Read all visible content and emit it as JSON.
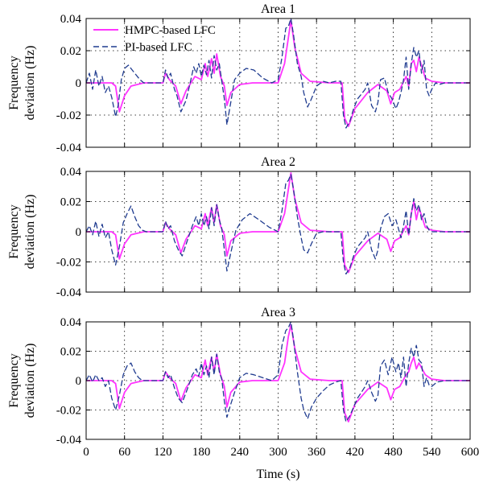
{
  "colors": {
    "hmpc": "#ff33ff",
    "pi": "#1f3b8f"
  },
  "shared_xlabel": "Time (s)",
  "chart_data": [
    {
      "type": "line",
      "title": "Area 1",
      "ylabel": [
        "Frequency",
        "deviation (Hz)"
      ],
      "xlim": [
        0,
        600
      ],
      "ylim": [
        -0.04,
        0.04
      ],
      "xticks": [
        0,
        60,
        120,
        180,
        240,
        300,
        360,
        420,
        480,
        540,
        600
      ],
      "yticks": [
        -0.04,
        -0.02,
        0,
        0.02,
        0.04
      ],
      "ytick_labels": [
        "-0.04",
        "-0.02",
        "0",
        "0.02",
        "0.04"
      ],
      "grid": true,
      "legend": "top-left",
      "series": [
        {
          "name": "HMPC-based LFC",
          "style": "solid",
          "x": [
            0,
            20,
            40,
            46,
            52,
            60,
            70,
            80,
            90,
            100,
            120,
            124,
            130,
            140,
            148,
            156,
            170,
            180,
            186,
            190,
            196,
            200,
            204,
            210,
            216,
            220,
            226,
            240,
            260,
            300,
            310,
            316,
            320,
            326,
            336,
            350,
            380,
            400,
            404,
            410,
            420,
            440,
            456,
            470,
            476,
            482,
            490,
            500,
            504,
            508,
            512,
            516,
            520,
            530,
            540,
            560,
            600
          ],
          "y": [
            0,
            0,
            0,
            -0.002,
            -0.018,
            -0.008,
            -0.002,
            -0.001,
            0,
            0,
            0,
            0.006,
            0.002,
            -0.002,
            -0.013,
            -0.005,
            0.004,
            0.002,
            0.012,
            0.004,
            0.015,
            0.006,
            0.018,
            0.004,
            -0.002,
            -0.014,
            -0.006,
            -0.001,
            0,
            0,
            0.012,
            0.028,
            0.039,
            0.022,
            0.006,
            0.001,
            0,
            0,
            -0.022,
            -0.027,
            -0.016,
            -0.006,
            -0.001,
            -0.005,
            -0.013,
            -0.006,
            -0.004,
            0.004,
            -0.002,
            0.012,
            0.014,
            0.007,
            0.016,
            0.003,
            0.001,
            0,
            0
          ]
        },
        {
          "name": "PI-based LFC",
          "style": "dashed",
          "x": [
            0,
            5,
            10,
            15,
            20,
            25,
            30,
            35,
            40,
            46,
            50,
            55,
            60,
            66,
            72,
            78,
            84,
            90,
            96,
            102,
            108,
            114,
            120,
            124,
            128,
            132,
            138,
            142,
            148,
            156,
            162,
            168,
            172,
            176,
            180,
            184,
            188,
            192,
            196,
            200,
            204,
            208,
            212,
            216,
            220,
            226,
            232,
            240,
            250,
            262,
            276,
            290,
            300,
            306,
            312,
            316,
            320,
            324,
            330,
            336,
            340,
            346,
            352,
            360,
            370,
            380,
            390,
            398,
            402,
            406,
            412,
            418,
            424,
            430,
            436,
            440,
            446,
            452,
            456,
            460,
            466,
            472,
            478,
            484,
            488,
            492,
            496,
            500,
            504,
            508,
            512,
            516,
            520,
            524,
            528,
            532,
            536,
            540,
            546,
            552,
            560,
            600
          ],
          "y": [
            0,
            0.006,
            -0.004,
            0.008,
            -0.002,
            0.004,
            -0.006,
            -0.002,
            -0.009,
            -0.021,
            -0.014,
            0.002,
            0.009,
            0.011,
            0.008,
            0.005,
            0.002,
            0,
            0,
            0,
            0,
            0,
            0,
            0.008,
            0.003,
            0.006,
            -0.004,
            -0.008,
            -0.018,
            -0.011,
            -0.001,
            0.01,
            0.006,
            0.012,
            0.004,
            0.011,
            0.005,
            0.014,
            0.003,
            0.017,
            0.008,
            0.012,
            0.001,
            -0.01,
            -0.026,
            -0.012,
            0.002,
            0.006,
            0.009,
            0.008,
            0.003,
            0,
            0.002,
            0.016,
            0.034,
            0.035,
            0.04,
            0.03,
            0.012,
            0.004,
            -0.006,
            -0.015,
            -0.01,
            -0.002,
            0.001,
            0,
            0.001,
            0.001,
            -0.02,
            -0.028,
            -0.024,
            -0.016,
            -0.01,
            -0.007,
            -0.004,
            0,
            -0.014,
            -0.018,
            -0.012,
            0.002,
            0.003,
            -0.006,
            -0.01,
            -0.016,
            -0.012,
            -0.006,
            0.002,
            0.016,
            -0.004,
            0.012,
            0.022,
            0.016,
            0.02,
            0.006,
            0.014,
            -0.004,
            -0.008,
            -0.004,
            0,
            -0.001,
            0,
            0
          ]
        }
      ]
    },
    {
      "type": "line",
      "title": "Area 2",
      "ylabel": [
        "Frequency",
        "deviation (Hz)"
      ],
      "xlim": [
        0,
        600
      ],
      "ylim": [
        -0.04,
        0.04
      ],
      "xticks": [
        0,
        60,
        120,
        180,
        240,
        300,
        360,
        420,
        480,
        540,
        600
      ],
      "yticks": [
        -0.04,
        -0.02,
        0,
        0.02,
        0.04
      ],
      "ytick_labels": [
        "-0.04",
        "-0.02",
        "0",
        "0.02",
        "0.04"
      ],
      "grid": true,
      "series": [
        {
          "name": "HMPC-based LFC",
          "style": "solid",
          "x": [
            0,
            20,
            40,
            46,
            52,
            60,
            70,
            80,
            90,
            100,
            120,
            124,
            130,
            140,
            148,
            156,
            170,
            180,
            186,
            190,
            196,
            200,
            204,
            210,
            216,
            220,
            226,
            240,
            260,
            300,
            310,
            316,
            320,
            326,
            336,
            350,
            380,
            400,
            404,
            410,
            420,
            440,
            456,
            470,
            476,
            482,
            490,
            500,
            504,
            508,
            512,
            516,
            520,
            530,
            540,
            560,
            600
          ],
          "y": [
            0,
            0,
            0,
            -0.002,
            -0.018,
            -0.008,
            -0.002,
            -0.001,
            0,
            0,
            0,
            0.006,
            0.002,
            -0.002,
            -0.014,
            -0.005,
            0.004,
            0.002,
            0.012,
            0.004,
            0.016,
            0.006,
            0.018,
            0.004,
            -0.002,
            -0.016,
            -0.006,
            -0.001,
            0,
            0,
            0.012,
            0.028,
            0.039,
            0.022,
            0.006,
            0.001,
            0,
            0,
            -0.022,
            -0.027,
            -0.016,
            -0.006,
            -0.001,
            -0.005,
            -0.013,
            -0.006,
            -0.004,
            0.004,
            -0.002,
            0.012,
            0.02,
            0.008,
            0.016,
            0.003,
            0.001,
            0,
            0
          ]
        },
        {
          "name": "PI-based LFC",
          "style": "dashed",
          "x": [
            0,
            5,
            10,
            15,
            20,
            25,
            30,
            35,
            40,
            46,
            52,
            58,
            64,
            70,
            76,
            82,
            88,
            94,
            100,
            110,
            120,
            124,
            128,
            132,
            138,
            144,
            150,
            158,
            166,
            172,
            176,
            180,
            184,
            188,
            192,
            196,
            200,
            204,
            208,
            212,
            216,
            220,
            226,
            234,
            244,
            256,
            270,
            286,
            300,
            306,
            312,
            316,
            320,
            324,
            330,
            336,
            340,
            346,
            352,
            360,
            370,
            380,
            398,
            402,
            406,
            412,
            418,
            424,
            430,
            436,
            440,
            446,
            452,
            456,
            460,
            466,
            472,
            478,
            484,
            488,
            492,
            496,
            500,
            504,
            508,
            512,
            516,
            520,
            524,
            528,
            532,
            536,
            540,
            548,
            560,
            600
          ],
          "y": [
            0,
            0.004,
            -0.002,
            0.007,
            -0.003,
            0.005,
            -0.004,
            0,
            -0.012,
            -0.022,
            -0.01,
            0.006,
            0.012,
            0.017,
            0.01,
            0.004,
            0.001,
            0,
            0,
            0,
            0,
            0.007,
            0.002,
            0.004,
            -0.006,
            -0.012,
            -0.016,
            -0.006,
            0.004,
            0.01,
            0.004,
            0.012,
            0.004,
            0.01,
            0.002,
            0.016,
            0.004,
            0.018,
            0.008,
            0.002,
            -0.012,
            -0.026,
            -0.014,
            0.001,
            0.008,
            0.012,
            0.008,
            0.003,
            0,
            0.014,
            0.032,
            0.034,
            0.038,
            0.028,
            0.01,
            -0.004,
            -0.012,
            -0.014,
            -0.008,
            -0.001,
            0,
            0,
            0,
            -0.02,
            -0.028,
            -0.024,
            -0.016,
            -0.01,
            -0.007,
            -0.004,
            0,
            -0.012,
            -0.018,
            -0.012,
            0.002,
            0.01,
            0.012,
            0.004,
            0.008,
            0.002,
            -0.004,
            0.004,
            0.014,
            -0.002,
            0.012,
            0.022,
            0.014,
            0.018,
            0.008,
            0.012,
            0.004,
            0.001,
            0,
            0,
            0,
            0
          ]
        }
      ]
    },
    {
      "type": "line",
      "title": "Area 3",
      "ylabel": [
        "Frequency",
        "deviation (Hz)"
      ],
      "xlabel": "Time (s)",
      "xlim": [
        0,
        600
      ],
      "ylim": [
        -0.04,
        0.04
      ],
      "xticks": [
        0,
        60,
        120,
        180,
        240,
        300,
        360,
        420,
        480,
        540,
        600
      ],
      "yticks": [
        -0.04,
        -0.02,
        0,
        0.02,
        0.04
      ],
      "ytick_labels": [
        "-0.04",
        "-0.02",
        "0",
        "0.02",
        "0.04"
      ],
      "grid": true,
      "series": [
        {
          "name": "HMPC-based LFC",
          "style": "solid",
          "x": [
            0,
            20,
            40,
            46,
            52,
            60,
            70,
            80,
            90,
            100,
            120,
            124,
            130,
            140,
            148,
            156,
            170,
            180,
            186,
            190,
            196,
            200,
            204,
            210,
            216,
            220,
            226,
            240,
            260,
            300,
            310,
            316,
            320,
            326,
            336,
            350,
            380,
            400,
            404,
            410,
            420,
            440,
            456,
            470,
            476,
            482,
            490,
            500,
            504,
            508,
            512,
            516,
            520,
            530,
            540,
            560,
            600
          ],
          "y": [
            0,
            0,
            0,
            -0.002,
            -0.019,
            -0.008,
            -0.002,
            -0.001,
            0,
            0,
            0,
            0.006,
            0.002,
            -0.002,
            -0.014,
            -0.005,
            0.004,
            0.002,
            0.014,
            0.004,
            0.016,
            0.006,
            0.018,
            0.004,
            -0.004,
            -0.018,
            -0.008,
            -0.001,
            0,
            0,
            0.012,
            0.03,
            0.038,
            0.022,
            0.006,
            0.001,
            0,
            0,
            -0.022,
            -0.028,
            -0.016,
            -0.006,
            -0.001,
            -0.005,
            -0.013,
            -0.006,
            -0.004,
            0.004,
            0.006,
            0.012,
            0.016,
            0.008,
            0.012,
            0.004,
            0.001,
            0,
            0
          ]
        },
        {
          "name": "PI-based LFC",
          "style": "dashed",
          "x": [
            0,
            5,
            10,
            15,
            20,
            25,
            30,
            35,
            40,
            46,
            52,
            58,
            64,
            70,
            76,
            82,
            88,
            94,
            100,
            110,
            120,
            124,
            128,
            132,
            138,
            144,
            150,
            158,
            166,
            172,
            176,
            180,
            184,
            188,
            192,
            196,
            200,
            204,
            208,
            212,
            216,
            220,
            226,
            232,
            240,
            250,
            262,
            276,
            290,
            300,
            306,
            312,
            316,
            320,
            324,
            330,
            336,
            340,
            346,
            352,
            360,
            370,
            380,
            390,
            398,
            402,
            406,
            412,
            418,
            424,
            430,
            436,
            440,
            446,
            452,
            456,
            460,
            466,
            472,
            478,
            484,
            488,
            492,
            496,
            500,
            504,
            508,
            512,
            516,
            520,
            524,
            528,
            532,
            536,
            540,
            548,
            560,
            600
          ],
          "y": [
            0,
            0.004,
            -0.001,
            0.004,
            0,
            0.002,
            -0.004,
            0,
            -0.012,
            -0.02,
            -0.01,
            0.004,
            0.01,
            0.012,
            0.006,
            0.002,
            0,
            0,
            0,
            0,
            0,
            0.006,
            0.002,
            0.004,
            -0.005,
            -0.012,
            -0.015,
            -0.006,
            0.004,
            0.008,
            0.003,
            0.012,
            0.004,
            0.01,
            0.002,
            0.016,
            0.004,
            0.018,
            0.006,
            0.001,
            -0.014,
            -0.025,
            -0.016,
            -0.008,
            0.002,
            0.005,
            0.004,
            0.002,
            0,
            0.004,
            0.024,
            0.034,
            0.036,
            0.04,
            0.028,
            0.006,
            -0.012,
            -0.02,
            -0.026,
            -0.018,
            -0.012,
            -0.007,
            -0.003,
            -0.001,
            0,
            -0.02,
            -0.028,
            -0.024,
            -0.018,
            -0.012,
            -0.008,
            -0.004,
            0,
            -0.008,
            -0.014,
            -0.01,
            0.01,
            0.014,
            0.004,
            0.016,
            0.006,
            0.012,
            0.002,
            0.016,
            -0.004,
            0.012,
            0.022,
            0.016,
            0.024,
            0.014,
            0.012,
            -0.004,
            0.002,
            -0.003,
            -0.004,
            -0.001,
            0,
            0
          ]
        }
      ]
    }
  ]
}
